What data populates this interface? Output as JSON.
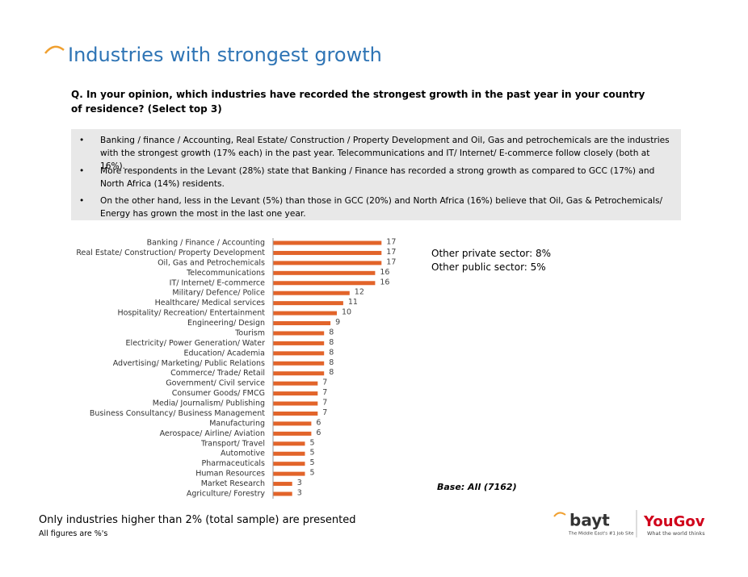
{
  "chart_data": {
    "type": "bar",
    "orientation": "horizontal",
    "title": "Industries with strongest growth",
    "categories": [
      "Banking / Finance / Accounting",
      "Real Estate/ Construction/ Property Development",
      "Oil, Gas and Petrochemicals",
      "Telecommunications",
      "IT/ Internet/ E-commerce",
      "Military/ Defence/ Police",
      "Healthcare/ Medical services",
      "Hospitality/ Recreation/ Entertainment",
      "Engineering/ Design",
      "Tourism",
      "Electricity/ Power Generation/ Water",
      "Education/ Academia",
      "Advertising/ Marketing/ Public Relations",
      "Commerce/ Trade/ Retail",
      "Government/ Civil service",
      "Consumer Goods/ FMCG",
      "Media/ Journalism/ Publishing",
      "Business Consultancy/ Business Management",
      "Manufacturing",
      "Aerospace/ Airline/ Aviation",
      "Transport/ Travel",
      "Automotive",
      "Pharmaceuticals",
      "Human Resources",
      "Market Research",
      "Agriculture/ Forestry"
    ],
    "values": [
      17,
      17,
      17,
      16,
      16,
      12,
      11,
      10,
      9,
      8,
      8,
      8,
      8,
      8,
      7,
      7,
      7,
      7,
      6,
      6,
      5,
      5,
      5,
      5,
      3,
      3
    ],
    "color": "#e2642a"
  },
  "question": "Q. In your opinion, which industries have recorded the strongest growth in the past year in your country of residence? (Select top 3)",
  "bullets": [
    "Banking / finance / Accounting, Real Estate/ Construction / Property Development and Oil, Gas and petrochemicals are the industries with the strongest growth (17% each) in the past year. Telecommunications and IT/ Internet/ E-commerce follow closely (both at 16%).",
    "More respondents in the Levant (28%) state that Banking / Finance has recorded a strong growth as compared to GCC (17%) and North Africa (14%) residents.",
    "On the other hand, less in the Levant (5%) than those in GCC (20%) and North Africa (16%) believe that Oil, Gas & Petrochemicals/ Energy has grown the most in the last one year."
  ],
  "side_notes": [
    "Other private sector: 8%",
    "Other public sector: 5%"
  ],
  "base": "Base: All (7162)",
  "footnotes": [
    "Only industries higher than 2% (total sample) are presented",
    "All figures are %'s"
  ],
  "logos": {
    "bayt": "bayt",
    "bayt_tagline": "The Middle East's #1 Job Site",
    "yougov": "YouGov",
    "yougov_tagline": "What the world thinks"
  }
}
